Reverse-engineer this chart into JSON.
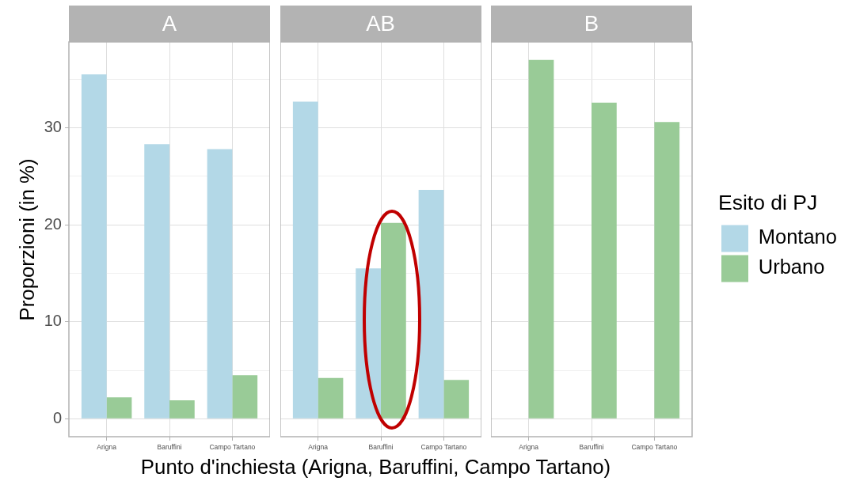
{
  "chart_data": [
    {
      "type": "bar",
      "title": "A",
      "ylabel": "Proporzioni (in %)",
      "categories": [
        "Arigna",
        "Baruffini",
        "Campo Tartano"
      ],
      "series": [
        {
          "color": "#b3d8e7",
          "values": [
            35.5,
            28.3,
            27.8
          ]
        },
        {
          "color": "#99cb97",
          "values": [
            2.2,
            1.9,
            4.5
          ]
        }
      ],
      "ylim": [
        -1.85,
        38.85
      ],
      "yticks": [
        0,
        {
          "value": 5,
          "label": null
        },
        10,
        {
          "value": 15,
          "label": null
        },
        20,
        {
          "value": 25,
          "label": null
        },
        30,
        {
          "value": 35,
          "label": null
        }
      ],
      "grid": true
    },
    {
      "type": "bar",
      "title": "AB",
      "xlabel": "Punto d'inchiesta (Arigna, Baruffini, Campo Tartano)",
      "categories": [
        "Arigna",
        "Baruffini",
        "Campo Tartano"
      ],
      "series": [
        {
          "color": "#b3d8e7",
          "values": [
            32.7,
            15.5,
            23.6
          ]
        },
        {
          "color": "#99cb97",
          "values": [
            4.2,
            20.2,
            4.0
          ]
        }
      ],
      "ylim": [
        -1.85,
        38.85
      ],
      "yticks": [
        0,
        {
          "value": 5,
          "label": null
        },
        10,
        {
          "value": 15,
          "label": null
        },
        20,
        {
          "value": 25,
          "label": null
        },
        30,
        {
          "value": 35,
          "label": null
        }
      ],
      "grid": true,
      "tick_labels": "x"
    },
    {
      "type": "bar",
      "title": "B",
      "categories": [
        "Arigna",
        "Baruffini",
        "Campo Tartano"
      ],
      "series": [
        {
          "name": "Montano",
          "color": "#b3d8e7",
          "values": [
            null,
            null,
            null
          ]
        },
        {
          "name": "Urbano",
          "color": "#99cb97",
          "values": [
            37.0,
            32.6,
            30.6
          ]
        }
      ],
      "ylim": [
        -1.85,
        38.85
      ],
      "yticks": [
        0,
        {
          "value": 5,
          "label": null
        },
        10,
        {
          "value": 15,
          "label": null
        },
        20,
        {
          "value": 25,
          "label": null
        },
        30,
        {
          "value": 35,
          "label": null
        }
      ],
      "grid": true,
      "tick_labels": "x",
      "legend": "right",
      "legend_title": "Esito di PJ"
    }
  ]
}
